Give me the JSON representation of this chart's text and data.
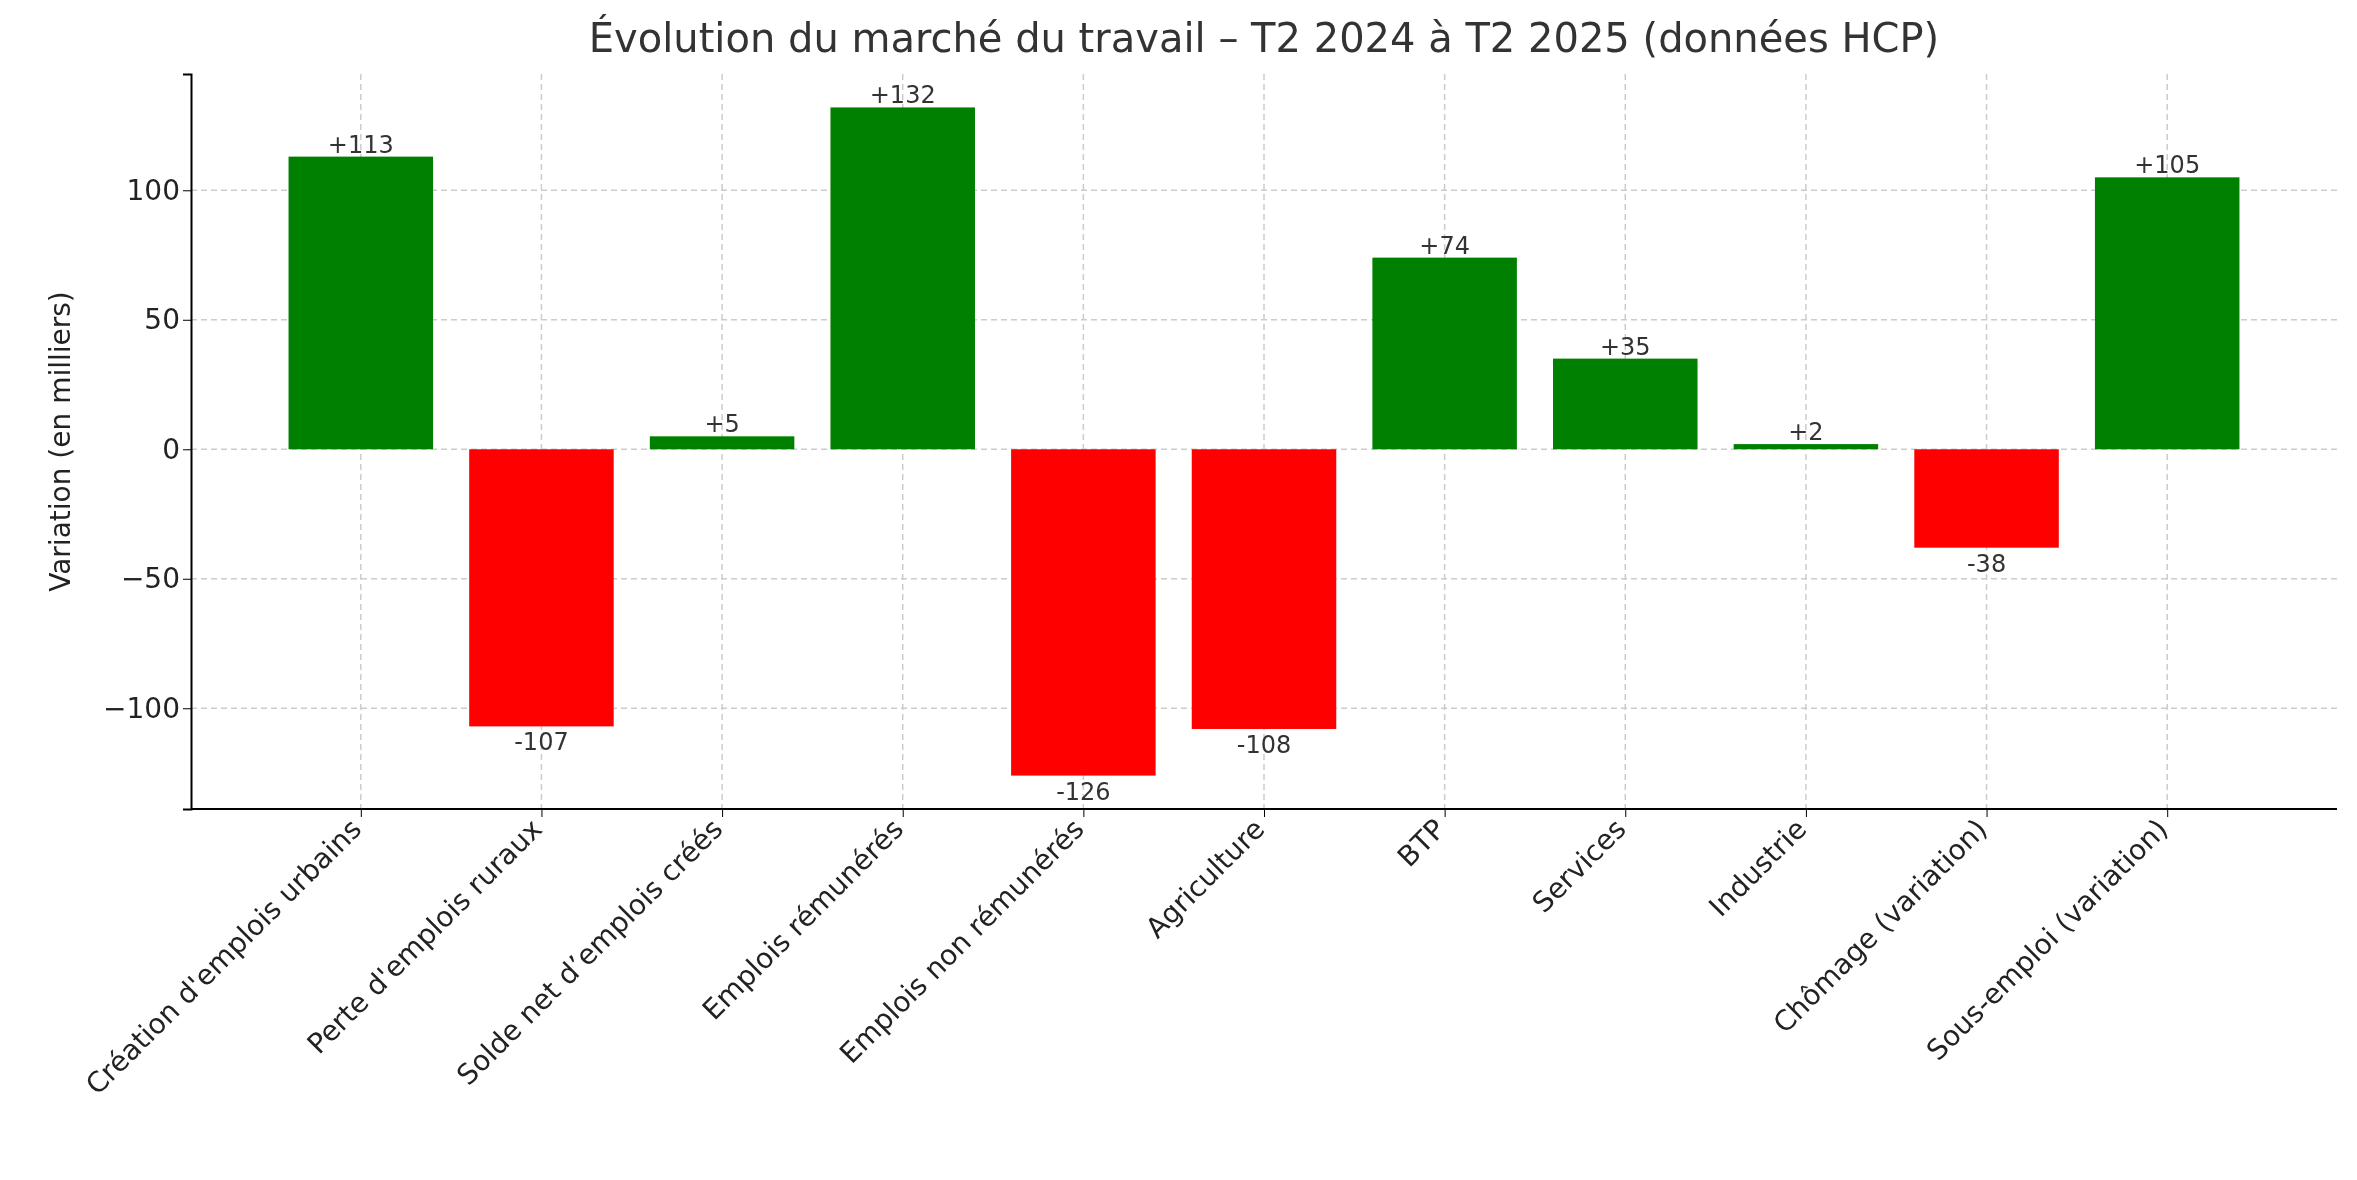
{
  "chart_data": {
    "type": "bar",
    "title": "Évolution du marché du travail – T2 2024 à T2 2025 (données HCP)",
    "ylabel": "Variation (en milliers)",
    "categories": [
      "Création d'emplois urbains",
      "Perte d'emplois ruraux",
      "Solde net d’emplois créés",
      "Emplois rémunérés",
      "Emplois non rémunérés",
      "Agriculture",
      "BTP",
      "Services",
      "Industrie",
      "Chômage (variation)",
      "Sous-emploi (variation)"
    ],
    "values": [
      113,
      -107,
      5,
      132,
      -126,
      -108,
      74,
      35,
      2,
      -38,
      105
    ],
    "colors": [
      "#008000",
      "#ff0000",
      "#008000",
      "#008000",
      "#ff0000",
      "#ff0000",
      "#008000",
      "#008000",
      "#008000",
      "#ff0000",
      "#008000"
    ],
    "value_labels": [
      "+113",
      "-107",
      "+5",
      "+132",
      "-126",
      "-108",
      "+74",
      "+35",
      "+2",
      "-38",
      "+105"
    ],
    "ylim": [
      -138.9,
      144.9
    ],
    "yticks": [
      {
        "value": -100,
        "label": "−100"
      },
      {
        "value": -50,
        "label": "−50"
      },
      0,
      50,
      100
    ],
    "grid": true
  }
}
